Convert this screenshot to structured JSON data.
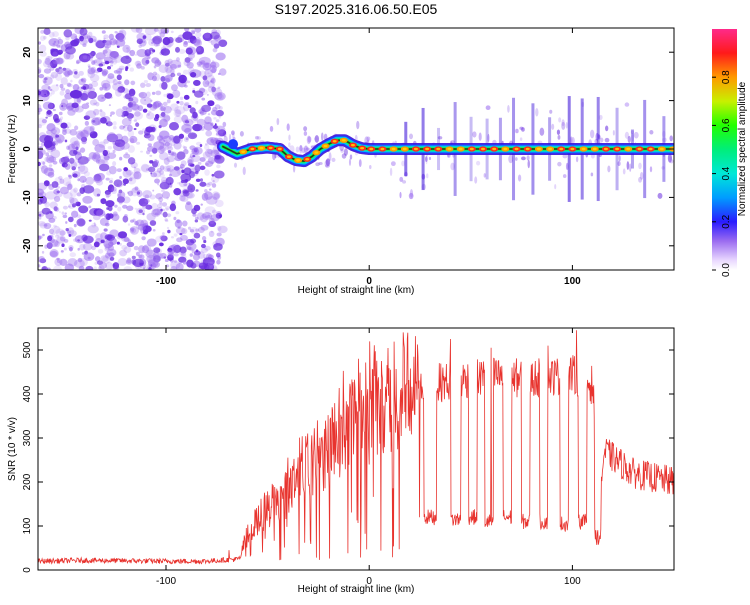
{
  "figure_title": "S197.2025.316.06.50.E05",
  "colors": {
    "noise": "#9b6cf0",
    "noise_dark": "#6a2ee0",
    "snr_line": "#e8332e",
    "axis": "#000000"
  },
  "chart_data": [
    {
      "type": "heatmap",
      "title": "S197.2025.316.06.50.E05",
      "xlabel": "Height of straight line (km)",
      "ylabel": "Frequency (Hz)",
      "xlim": [
        -163,
        150
      ],
      "ylim": [
        -25,
        25
      ],
      "xticks": [
        -100,
        0,
        100
      ],
      "yticks": [
        -20,
        -10,
        0,
        10,
        20
      ],
      "colorbar": {
        "label": "Normalized spectral amplitude",
        "ticks": [
          0.0,
          0.2,
          0.4,
          0.6,
          0.8
        ],
        "range": [
          0,
          1
        ],
        "colormap": "rainbow"
      },
      "regions": [
        {
          "name": "noise",
          "x_range": [
            -163,
            -72
          ],
          "description": "broadband low amplitude"
        },
        {
          "name": "signal",
          "x_range": [
            -72,
            150
          ],
          "description": "tone near 0 Hz with Doppler wobble"
        }
      ],
      "signal_track": {
        "x": [
          -72,
          -65,
          -58,
          -50,
          -44,
          -40,
          -36,
          -32,
          -28,
          -24,
          -20,
          -16,
          -12,
          -8,
          -4,
          0,
          150
        ],
        "freq_hz": [
          0.5,
          -1,
          0,
          0.3,
          0,
          -1.5,
          -2.3,
          -2.5,
          -1.5,
          0,
          1,
          1.8,
          1.8,
          0.8,
          0.2,
          0,
          0
        ]
      }
    },
    {
      "type": "line",
      "xlabel": "Height of straight line (km)",
      "ylabel": "SNR (10 * v/v)",
      "xlim": [
        -163,
        150
      ],
      "ylim": [
        0,
        550
      ],
      "xticks": [
        -100,
        0,
        100
      ],
      "yticks": [
        0,
        100,
        200,
        300,
        400,
        500
      ],
      "series": [
        {
          "name": "SNR",
          "envelope_x": [
            -163,
            -140,
            -100,
            -80,
            -64,
            -60,
            -52,
            -45,
            -38,
            -30,
            -22,
            -12,
            -4,
            5,
            15,
            25,
            28,
            40,
            60,
            80,
            100,
            110,
            114,
            116,
            130,
            150
          ],
          "envelope_y": [
            20,
            22,
            20,
            20,
            25,
            80,
            130,
            160,
            190,
            240,
            270,
            330,
            360,
            380,
            400,
            410,
            420,
            430,
            440,
            435,
            445,
            420,
            210,
            270,
            220,
            200
          ],
          "dropouts": [
            {
              "x_range": [
                27,
                33
              ],
              "level": 120
            },
            {
              "x_range": [
                40,
                45
              ],
              "level": 115
            },
            {
              "x_range": [
                49,
                53
              ],
              "level": 120
            },
            {
              "x_range": [
                57,
                61
              ],
              "level": 110
            },
            {
              "x_range": [
                66,
                70
              ],
              "level": 120
            },
            {
              "x_range": [
                75,
                79
              ],
              "level": 110
            },
            {
              "x_range": [
                84,
                88
              ],
              "level": 110
            },
            {
              "x_range": [
                94,
                98
              ],
              "level": 105
            },
            {
              "x_range": [
                103,
                107
              ],
              "level": 110
            },
            {
              "x_range": [
                111,
                114
              ],
              "level": 75
            }
          ],
          "spikes": [
            {
              "x": 40,
              "y": 525
            },
            {
              "x": 60,
              "y": 505
            },
            {
              "x": 88,
              "y": 510
            },
            {
              "x": 102,
              "y": 545
            },
            {
              "x": -69,
              "y": 45
            }
          ]
        }
      ]
    }
  ]
}
